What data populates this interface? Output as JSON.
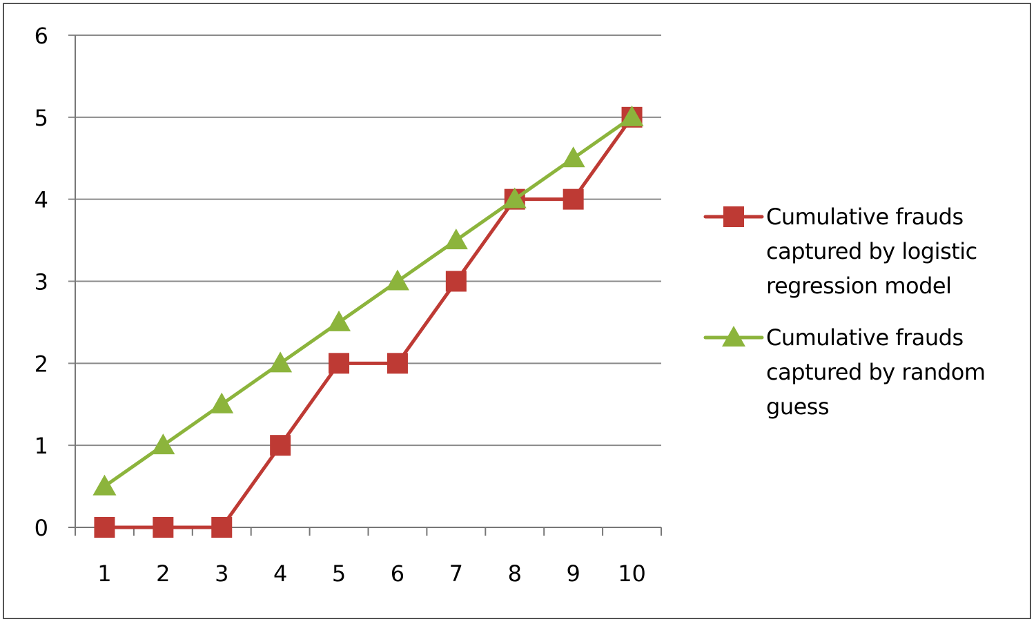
{
  "chart_data": {
    "type": "line",
    "title": "",
    "xlabel": "",
    "ylabel": "",
    "categories": [
      "1",
      "2",
      "3",
      "4",
      "5",
      "6",
      "7",
      "8",
      "9",
      "10"
    ],
    "ylim": [
      0,
      6
    ],
    "yticks": [
      "0",
      "1",
      "2",
      "3",
      "4",
      "5",
      "6"
    ],
    "grid": true,
    "legend_position": "right",
    "series": [
      {
        "name": "Cumulative frauds captured by logistic regression model",
        "color": "#be3a34",
        "marker": "square",
        "values": [
          0,
          0,
          0,
          1,
          2,
          2,
          3,
          4,
          4,
          5
        ]
      },
      {
        "name": "Cumulative frauds captured by random guess",
        "color": "#8cb43c",
        "marker": "triangle",
        "values": [
          0.5,
          1,
          1.5,
          2,
          2.5,
          3,
          3.5,
          4,
          4.5,
          5
        ]
      }
    ]
  }
}
